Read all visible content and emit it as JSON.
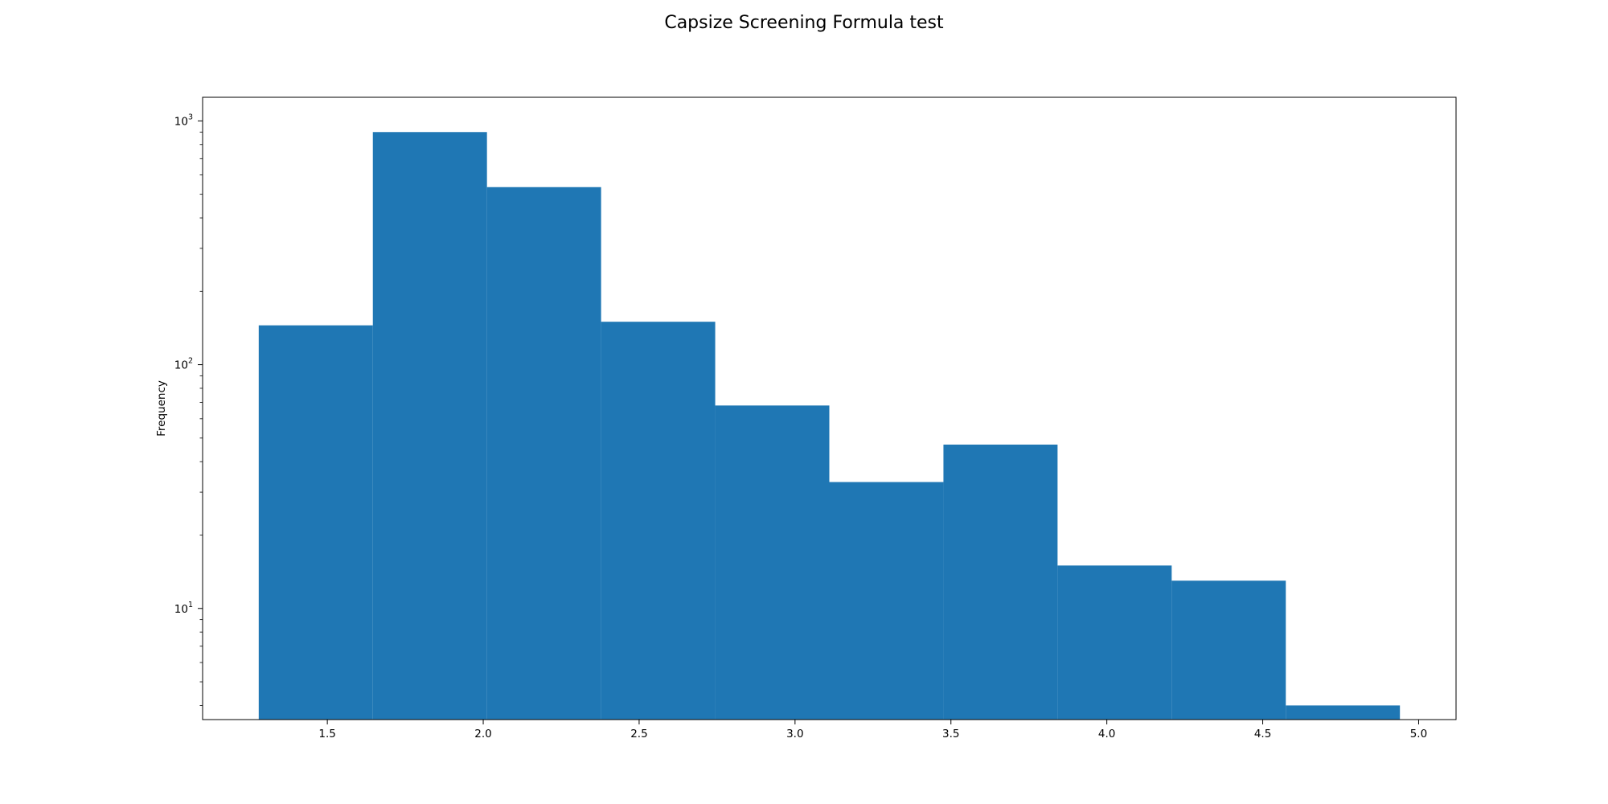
{
  "chart_data": {
    "type": "bar",
    "title": "Capsize Screening Formula test",
    "xlabel": "",
    "ylabel": "Frequency",
    "yscale": "log",
    "xlim": [
      1.1,
      5.12
    ],
    "ylim": [
      3.5,
      1250
    ],
    "bin_edges": [
      1.28,
      1.646,
      2.012,
      2.378,
      2.744,
      3.11,
      3.476,
      3.842,
      4.208,
      4.574,
      4.94
    ],
    "values": [
      145,
      900,
      535,
      150,
      68,
      33,
      47,
      15,
      13,
      4
    ],
    "x_ticks": [
      1.5,
      2.0,
      2.5,
      3.0,
      3.5,
      4.0,
      4.5,
      5.0
    ],
    "x_tick_labels": [
      "1.5",
      "2.0",
      "2.5",
      "3.0",
      "3.5",
      "4.0",
      "4.5",
      "5.0"
    ],
    "y_ticks": [
      {
        "value": 10,
        "base": "10",
        "exp": "1"
      },
      {
        "value": 100,
        "base": "10",
        "exp": "2"
      },
      {
        "value": 1000,
        "base": "10",
        "exp": "3"
      }
    ],
    "bar_color": "#1f77b4",
    "grid": false,
    "legend": "none"
  }
}
